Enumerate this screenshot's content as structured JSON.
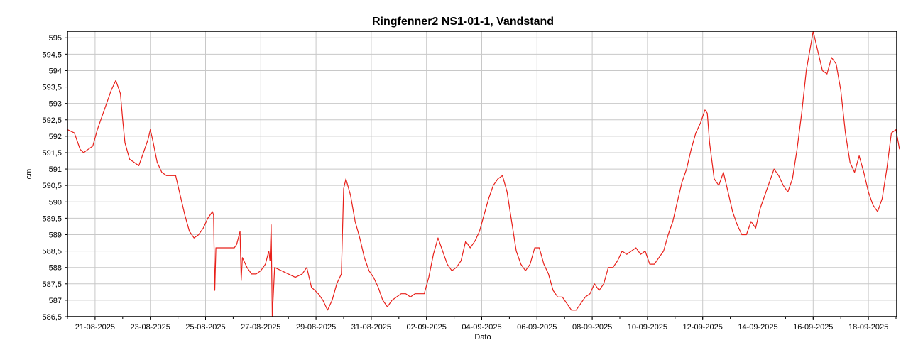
{
  "chart_data": {
    "type": "line",
    "title": "Ringfenner2 NS1-01-1, Vandstand",
    "xlabel": "Dato",
    "ylabel": "cm",
    "ylim": [
      586.5,
      595.2
    ],
    "xlim": [
      "2025-08-20",
      "2025-09-18"
    ],
    "grid": true,
    "x_ticks": [
      "21-08-2025",
      "23-08-2025",
      "25-08-2025",
      "27-08-2025",
      "29-08-2025",
      "31-08-2025",
      "02-09-2025",
      "04-09-2025",
      "06-09-2025",
      "08-09-2025",
      "10-09-2025",
      "12-09-2025",
      "14-09-2025",
      "16-09-2025",
      "18-09-2025"
    ],
    "y_ticks": [
      "586,5",
      "587",
      "587,5",
      "588",
      "588,5",
      "589",
      "589,5",
      "590",
      "590,5",
      "591",
      "591,5",
      "592",
      "592,5",
      "593",
      "593,5",
      "594",
      "594,5",
      "595"
    ],
    "series": [
      {
        "name": "",
        "color": "#e8201a",
        "points": [
          [
            "2025-08-20T00:00",
            592.2
          ],
          [
            "2025-08-20T06:00",
            592.1
          ],
          [
            "2025-08-20T08:00",
            591.9
          ],
          [
            "2025-08-20T11:00",
            591.6
          ],
          [
            "2025-08-20T14:00",
            591.5
          ],
          [
            "2025-08-20T18:00",
            591.6
          ],
          [
            "2025-08-20T22:00",
            591.7
          ],
          [
            "2025-08-21T02:00",
            592.2
          ],
          [
            "2025-08-21T06:00",
            592.6
          ],
          [
            "2025-08-21T10:00",
            593.0
          ],
          [
            "2025-08-21T14:00",
            593.4
          ],
          [
            "2025-08-21T18:00",
            593.7
          ],
          [
            "2025-08-21T22:00",
            593.3
          ],
          [
            "2025-08-22T00:00",
            592.5
          ],
          [
            "2025-08-22T02:00",
            591.8
          ],
          [
            "2025-08-22T06:00",
            591.3
          ],
          [
            "2025-08-22T10:00",
            591.2
          ],
          [
            "2025-08-22T14:00",
            591.1
          ],
          [
            "2025-08-22T18:00",
            591.5
          ],
          [
            "2025-08-22T22:00",
            591.9
          ],
          [
            "2025-08-23T00:00",
            592.2
          ],
          [
            "2025-08-23T02:00",
            591.9
          ],
          [
            "2025-08-23T06:00",
            591.2
          ],
          [
            "2025-08-23T10:00",
            590.9
          ],
          [
            "2025-08-23T14:00",
            590.8
          ],
          [
            "2025-08-23T18:00",
            590.8
          ],
          [
            "2025-08-23T22:00",
            590.8
          ],
          [
            "2025-08-24T02:00",
            590.2
          ],
          [
            "2025-08-24T06:00",
            589.6
          ],
          [
            "2025-08-24T10:00",
            589.1
          ],
          [
            "2025-08-24T14:00",
            588.9
          ],
          [
            "2025-08-24T18:00",
            589.0
          ],
          [
            "2025-08-24T22:00",
            589.2
          ],
          [
            "2025-08-25T02:00",
            589.5
          ],
          [
            "2025-08-25T06:00",
            589.7
          ],
          [
            "2025-08-25T07:00",
            589.6
          ],
          [
            "2025-08-25T08:00",
            587.3
          ],
          [
            "2025-08-25T09:00",
            588.6
          ],
          [
            "2025-08-25T14:00",
            588.6
          ],
          [
            "2025-08-25T20:00",
            588.6
          ],
          [
            "2025-08-26T01:00",
            588.6
          ],
          [
            "2025-08-26T03:00",
            588.7
          ],
          [
            "2025-08-26T06:00",
            589.1
          ],
          [
            "2025-08-26T07:00",
            587.6
          ],
          [
            "2025-08-26T08:00",
            588.3
          ],
          [
            "2025-08-26T12:00",
            588.0
          ],
          [
            "2025-08-26T16:00",
            587.8
          ],
          [
            "2025-08-26T20:00",
            587.8
          ],
          [
            "2025-08-27T00:00",
            587.9
          ],
          [
            "2025-08-27T04:00",
            588.1
          ],
          [
            "2025-08-27T07:00",
            588.5
          ],
          [
            "2025-08-27T08:00",
            588.2
          ],
          [
            "2025-08-27T09:00",
            589.3
          ],
          [
            "2025-08-27T10:00",
            586.5
          ],
          [
            "2025-08-27T12:00",
            588.0
          ],
          [
            "2025-08-27T18:00",
            587.9
          ],
          [
            "2025-08-28T00:00",
            587.8
          ],
          [
            "2025-08-28T06:00",
            587.7
          ],
          [
            "2025-08-28T12:00",
            587.8
          ],
          [
            "2025-08-28T16:00",
            588.0
          ],
          [
            "2025-08-28T20:00",
            587.4
          ],
          [
            "2025-08-29T02:00",
            587.2
          ],
          [
            "2025-08-29T06:00",
            587.0
          ],
          [
            "2025-08-29T10:00",
            586.7
          ],
          [
            "2025-08-29T14:00",
            587.0
          ],
          [
            "2025-08-29T18:00",
            587.5
          ],
          [
            "2025-08-29T22:00",
            587.8
          ],
          [
            "2025-08-30T00:00",
            590.4
          ],
          [
            "2025-08-30T02:00",
            590.7
          ],
          [
            "2025-08-30T06:00",
            590.2
          ],
          [
            "2025-08-30T10:00",
            589.4
          ],
          [
            "2025-08-30T14:00",
            588.9
          ],
          [
            "2025-08-30T18:00",
            588.3
          ],
          [
            "2025-08-30T22:00",
            587.9
          ],
          [
            "2025-08-31T02:00",
            587.7
          ],
          [
            "2025-08-31T06:00",
            587.4
          ],
          [
            "2025-08-31T10:00",
            587.0
          ],
          [
            "2025-08-31T14:00",
            586.8
          ],
          [
            "2025-08-31T18:00",
            587.0
          ],
          [
            "2025-08-31T22:00",
            587.1
          ],
          [
            "2025-09-01T02:00",
            587.2
          ],
          [
            "2025-09-01T06:00",
            587.2
          ],
          [
            "2025-09-01T10:00",
            587.1
          ],
          [
            "2025-09-01T14:00",
            587.2
          ],
          [
            "2025-09-01T18:00",
            587.2
          ],
          [
            "2025-09-01T22:00",
            587.2
          ],
          [
            "2025-09-02T02:00",
            587.7
          ],
          [
            "2025-09-02T06:00",
            588.4
          ],
          [
            "2025-09-02T10:00",
            588.9
          ],
          [
            "2025-09-02T14:00",
            588.5
          ],
          [
            "2025-09-02T18:00",
            588.1
          ],
          [
            "2025-09-02T22:00",
            587.9
          ],
          [
            "2025-09-03T02:00",
            588.0
          ],
          [
            "2025-09-03T06:00",
            588.2
          ],
          [
            "2025-09-03T10:00",
            588.8
          ],
          [
            "2025-09-03T14:00",
            588.6
          ],
          [
            "2025-09-03T18:00",
            588.8
          ],
          [
            "2025-09-03T22:00",
            589.1
          ],
          [
            "2025-09-04T02:00",
            589.6
          ],
          [
            "2025-09-04T06:00",
            590.1
          ],
          [
            "2025-09-04T10:00",
            590.5
          ],
          [
            "2025-09-04T14:00",
            590.7
          ],
          [
            "2025-09-04T18:00",
            590.8
          ],
          [
            "2025-09-04T22:00",
            590.3
          ],
          [
            "2025-09-05T02:00",
            589.4
          ],
          [
            "2025-09-05T06:00",
            588.5
          ],
          [
            "2025-09-05T10:00",
            588.1
          ],
          [
            "2025-09-05T14:00",
            587.9
          ],
          [
            "2025-09-05T18:00",
            588.1
          ],
          [
            "2025-09-05T22:00",
            588.6
          ],
          [
            "2025-09-06T02:00",
            588.6
          ],
          [
            "2025-09-06T06:00",
            588.1
          ],
          [
            "2025-09-06T10:00",
            587.8
          ],
          [
            "2025-09-06T14:00",
            587.3
          ],
          [
            "2025-09-06T18:00",
            587.1
          ],
          [
            "2025-09-06T22:00",
            587.1
          ],
          [
            "2025-09-07T02:00",
            586.9
          ],
          [
            "2025-09-07T06:00",
            586.7
          ],
          [
            "2025-09-07T10:00",
            586.7
          ],
          [
            "2025-09-07T14:00",
            586.9
          ],
          [
            "2025-09-07T18:00",
            587.1
          ],
          [
            "2025-09-07T22:00",
            587.2
          ],
          [
            "2025-09-08T02:00",
            587.5
          ],
          [
            "2025-09-08T06:00",
            587.3
          ],
          [
            "2025-09-08T10:00",
            587.5
          ],
          [
            "2025-09-08T14:00",
            588.0
          ],
          [
            "2025-09-08T18:00",
            588.0
          ],
          [
            "2025-09-08T22:00",
            588.2
          ],
          [
            "2025-09-09T02:00",
            588.5
          ],
          [
            "2025-09-09T06:00",
            588.4
          ],
          [
            "2025-09-09T10:00",
            588.5
          ],
          [
            "2025-09-09T14:00",
            588.6
          ],
          [
            "2025-09-09T18:00",
            588.4
          ],
          [
            "2025-09-09T22:00",
            588.5
          ],
          [
            "2025-09-10T02:00",
            588.1
          ],
          [
            "2025-09-10T06:00",
            588.1
          ],
          [
            "2025-09-10T10:00",
            588.3
          ],
          [
            "2025-09-10T14:00",
            588.5
          ],
          [
            "2025-09-10T18:00",
            589.0
          ],
          [
            "2025-09-10T22:00",
            589.4
          ],
          [
            "2025-09-11T02:00",
            590.0
          ],
          [
            "2025-09-11T06:00",
            590.6
          ],
          [
            "2025-09-11T10:00",
            591.0
          ],
          [
            "2025-09-11T14:00",
            591.6
          ],
          [
            "2025-09-11T18:00",
            592.1
          ],
          [
            "2025-09-11T22:00",
            592.4
          ],
          [
            "2025-09-12T02:00",
            592.8
          ],
          [
            "2025-09-12T04:00",
            592.7
          ],
          [
            "2025-09-12T06:00",
            591.8
          ],
          [
            "2025-09-12T10:00",
            590.7
          ],
          [
            "2025-09-12T14:00",
            590.5
          ],
          [
            "2025-09-12T18:00",
            590.9
          ],
          [
            "2025-09-12T22:00",
            590.3
          ],
          [
            "2025-09-13T02:00",
            589.7
          ],
          [
            "2025-09-13T06:00",
            589.3
          ],
          [
            "2025-09-13T10:00",
            589.0
          ],
          [
            "2025-09-13T14:00",
            589.0
          ],
          [
            "2025-09-13T18:00",
            589.4
          ],
          [
            "2025-09-13T22:00",
            589.2
          ],
          [
            "2025-09-14T02:00",
            589.8
          ],
          [
            "2025-09-14T06:00",
            590.2
          ],
          [
            "2025-09-14T10:00",
            590.6
          ],
          [
            "2025-09-14T14:00",
            591.0
          ],
          [
            "2025-09-14T18:00",
            590.8
          ],
          [
            "2025-09-14T22:00",
            590.5
          ],
          [
            "2025-09-15T02:00",
            590.3
          ],
          [
            "2025-09-15T06:00",
            590.7
          ],
          [
            "2025-09-15T10:00",
            591.6
          ],
          [
            "2025-09-15T14:00",
            592.7
          ],
          [
            "2025-09-15T18:00",
            594.0
          ],
          [
            "2025-09-15T22:00",
            594.8
          ],
          [
            "2025-09-16T00:00",
            595.2
          ],
          [
            "2025-09-16T04:00",
            594.6
          ],
          [
            "2025-09-16T08:00",
            594.0
          ],
          [
            "2025-09-16T12:00",
            593.9
          ],
          [
            "2025-09-16T16:00",
            594.4
          ],
          [
            "2025-09-16T20:00",
            594.2
          ],
          [
            "2025-09-17T00:00",
            593.4
          ],
          [
            "2025-09-17T04:00",
            592.1
          ],
          [
            "2025-09-17T08:00",
            591.2
          ],
          [
            "2025-09-17T12:00",
            590.9
          ],
          [
            "2025-09-17T16:00",
            591.4
          ],
          [
            "2025-09-17T20:00",
            590.9
          ],
          [
            "2025-09-18T00:00",
            590.3
          ],
          [
            "2025-09-18T04:00",
            589.9
          ],
          [
            "2025-09-18T08:00",
            589.7
          ],
          [
            "2025-09-18T12:00",
            590.1
          ],
          [
            "2025-09-18T16:00",
            591.0
          ],
          [
            "2025-09-18T20:00",
            592.1
          ],
          [
            "2025-09-19T00:00",
            592.2
          ],
          [
            "2025-09-19T03:00",
            591.6
          ]
        ]
      }
    ]
  }
}
